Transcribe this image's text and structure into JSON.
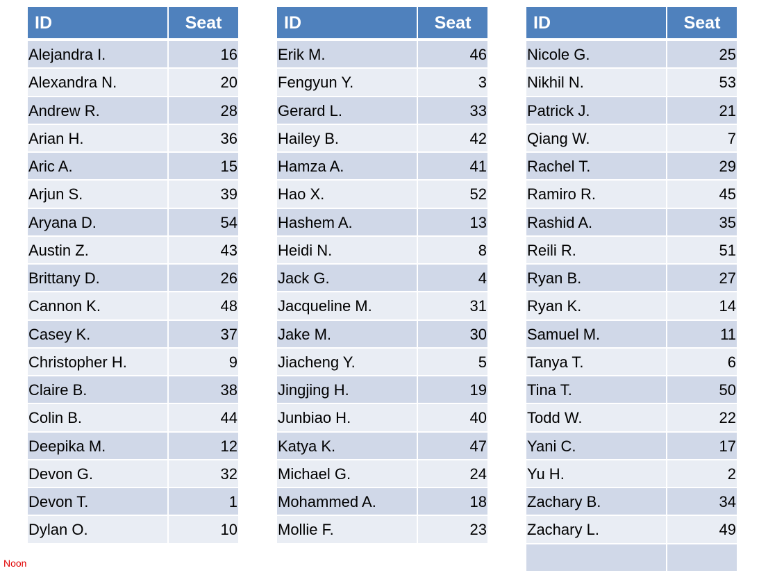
{
  "colors": {
    "header": "#4F81BD",
    "row_odd": "#D0D8E8",
    "row_even": "#E9EDF4",
    "note": "#E00000"
  },
  "tables": [
    {
      "headers": [
        "ID",
        "Seat"
      ],
      "rows": [
        {
          "id": "Alejandra I.",
          "seat": "16"
        },
        {
          "id": "Alexandra N.",
          "seat": "20"
        },
        {
          "id": "Andrew R.",
          "seat": "28"
        },
        {
          "id": "Arian H.",
          "seat": "36"
        },
        {
          "id": "Aric A.",
          "seat": "15"
        },
        {
          "id": "Arjun S.",
          "seat": "39"
        },
        {
          "id": "Aryana D.",
          "seat": "54"
        },
        {
          "id": "Austin Z.",
          "seat": "43"
        },
        {
          "id": "Brittany D.",
          "seat": "26"
        },
        {
          "id": "Cannon K.",
          "seat": "48"
        },
        {
          "id": "Casey K.",
          "seat": "37"
        },
        {
          "id": "Christopher H.",
          "seat": "9"
        },
        {
          "id": "Claire B.",
          "seat": "38"
        },
        {
          "id": "Colin B.",
          "seat": "44"
        },
        {
          "id": "Deepika M.",
          "seat": "12"
        },
        {
          "id": "Devon G.",
          "seat": "32"
        },
        {
          "id": "Devon T.",
          "seat": "1"
        },
        {
          "id": "Dylan O.",
          "seat": "10"
        }
      ]
    },
    {
      "headers": [
        "ID",
        "Seat"
      ],
      "rows": [
        {
          "id": "Erik M.",
          "seat": "46"
        },
        {
          "id": "Fengyun Y.",
          "seat": "3"
        },
        {
          "id": "Gerard L.",
          "seat": "33"
        },
        {
          "id": "Hailey B.",
          "seat": "42"
        },
        {
          "id": "Hamza A.",
          "seat": "41"
        },
        {
          "id": "Hao X.",
          "seat": "52"
        },
        {
          "id": "Hashem A.",
          "seat": "13"
        },
        {
          "id": "Heidi N.",
          "seat": "8"
        },
        {
          "id": "Jack G.",
          "seat": "4"
        },
        {
          "id": "Jacqueline M.",
          "seat": "31"
        },
        {
          "id": "Jake M.",
          "seat": "30"
        },
        {
          "id": "Jiacheng Y.",
          "seat": "5"
        },
        {
          "id": "Jingjing H.",
          "seat": "19"
        },
        {
          "id": "Junbiao H.",
          "seat": "40"
        },
        {
          "id": "Katya K.",
          "seat": "47"
        },
        {
          "id": "Michael G.",
          "seat": "24"
        },
        {
          "id": "Mohammed A.",
          "seat": "18"
        },
        {
          "id": "Mollie F.",
          "seat": "23"
        }
      ]
    },
    {
      "headers": [
        "ID",
        "Seat"
      ],
      "rows": [
        {
          "id": "Nicole G.",
          "seat": "25"
        },
        {
          "id": "Nikhil N.",
          "seat": "53"
        },
        {
          "id": "Patrick J.",
          "seat": "21"
        },
        {
          "id": "Qiang W.",
          "seat": "7"
        },
        {
          "id": "Rachel T.",
          "seat": "29"
        },
        {
          "id": "Ramiro R.",
          "seat": "45"
        },
        {
          "id": "Rashid A.",
          "seat": "35"
        },
        {
          "id": "Reili R.",
          "seat": "51"
        },
        {
          "id": "Ryan B.",
          "seat": "27"
        },
        {
          "id": "Ryan K.",
          "seat": "14"
        },
        {
          "id": "Samuel M.",
          "seat": "11"
        },
        {
          "id": "Tanya T.",
          "seat": "6"
        },
        {
          "id": "Tina T.",
          "seat": "50"
        },
        {
          "id": "Todd W.",
          "seat": "22"
        },
        {
          "id": "Yani C.",
          "seat": "17"
        },
        {
          "id": "Yu H.",
          "seat": "2"
        },
        {
          "id": "Zachary B.",
          "seat": "34"
        },
        {
          "id": "Zachary L.",
          "seat": "49"
        },
        {
          "id": "",
          "seat": ""
        }
      ]
    }
  ],
  "note": "Noon"
}
